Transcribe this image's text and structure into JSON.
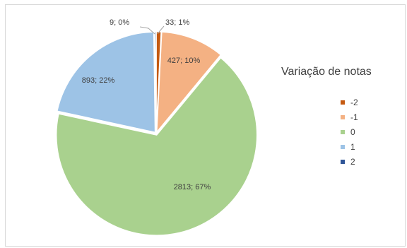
{
  "chart_data": {
    "type": "pie",
    "title": "",
    "legend_title": "Variação de notas",
    "legend_position": "right",
    "categories": [
      "-2",
      "-1",
      "0",
      "1",
      "2"
    ],
    "values": [
      33,
      427,
      2813,
      893,
      9
    ],
    "percent_labels": [
      "1%",
      "10%",
      "67%",
      "22%",
      "0%"
    ],
    "data_labels": [
      "33; 1%",
      "427; 10%",
      "2813; 67%",
      "893; 22%",
      "9; 0%"
    ],
    "colors": [
      "#c55a11",
      "#f4b183",
      "#a9d18e",
      "#9dc3e6",
      "#2f5597"
    ]
  }
}
